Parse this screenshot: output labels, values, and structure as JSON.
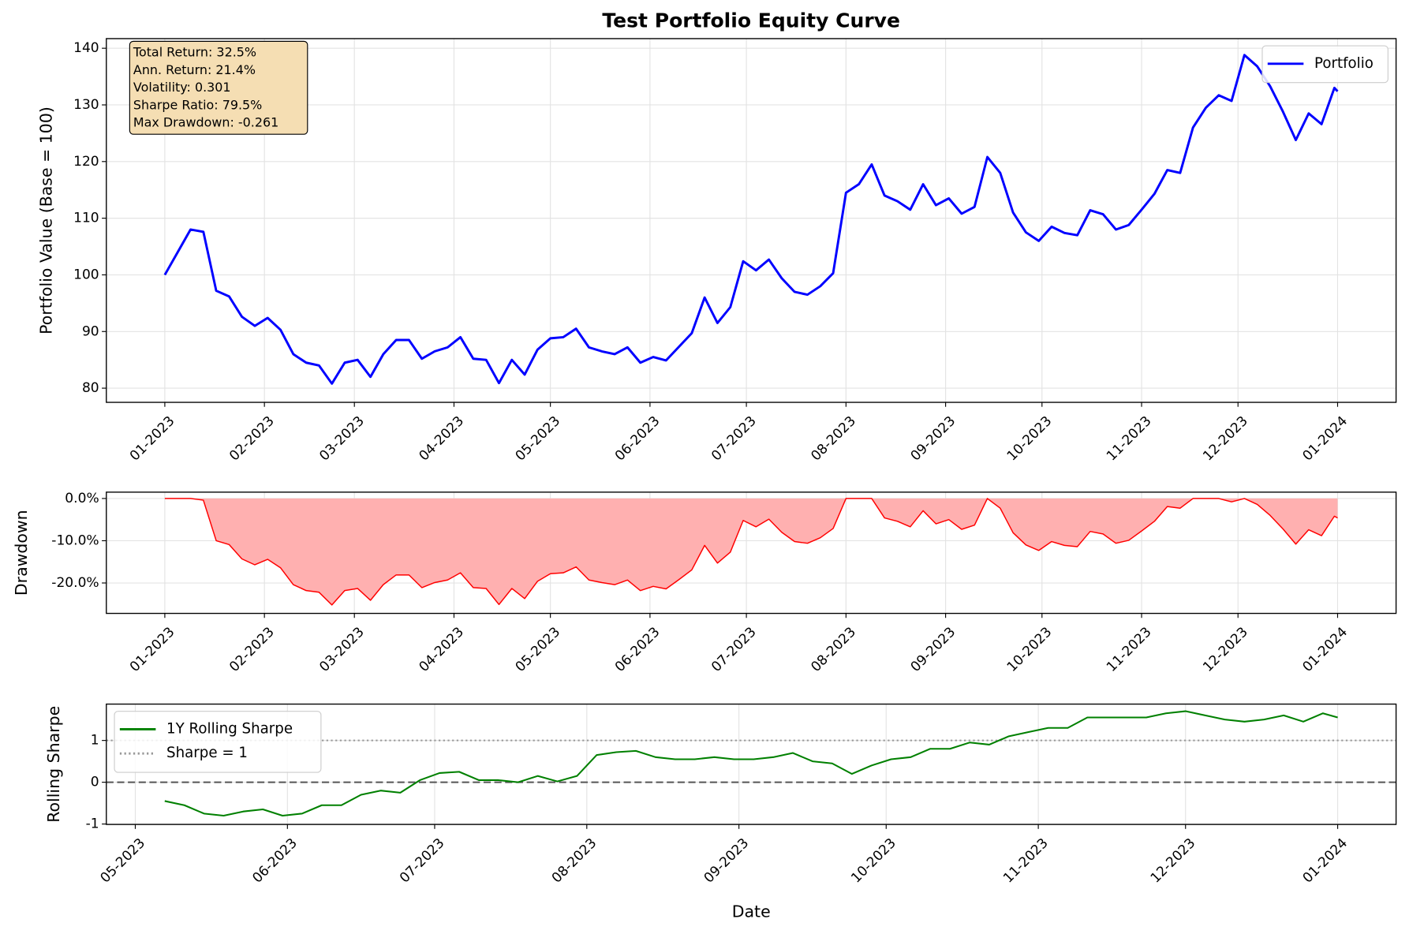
{
  "chart_data": [
    {
      "type": "line",
      "title": "Test Portfolio Equity Curve",
      "y_label": "Portfolio Value (Base = 100)",
      "x": [
        0,
        4,
        8,
        12,
        16,
        20,
        24,
        28,
        32,
        36,
        40,
        44,
        48,
        52,
        56,
        60,
        64,
        68,
        72,
        76,
        80,
        84,
        88,
        92,
        96,
        100,
        104,
        108,
        112,
        116,
        120,
        124,
        128,
        132,
        136,
        140,
        144,
        148,
        152,
        156,
        160,
        164,
        168,
        172,
        176,
        180,
        184,
        188,
        192,
        196,
        200,
        204,
        208,
        212,
        216,
        220,
        224,
        228,
        232,
        236,
        240,
        244,
        248,
        252,
        256,
        260,
        264,
        268,
        272,
        276,
        280,
        284,
        288,
        292,
        296,
        300,
        304,
        308,
        312,
        316,
        320,
        324,
        328,
        332,
        336,
        340,
        344,
        348,
        352,
        356,
        360,
        364,
        365
      ],
      "series": [
        {
          "name": "Portfolio",
          "color": "#0000ff",
          "values": [
            100,
            104,
            108,
            107.6,
            97.2,
            96.2,
            92.6,
            91,
            92.4,
            90.3,
            86,
            84.5,
            84,
            80.8,
            84.5,
            85,
            82,
            86,
            88.5,
            88.5,
            85.2,
            86.5,
            87.2,
            89,
            85.2,
            85,
            80.9,
            85,
            82.4,
            86.8,
            88.8,
            89,
            90.5,
            87.2,
            86.5,
            86,
            87.2,
            84.5,
            85.5,
            84.9,
            87.3,
            89.7,
            96,
            91.5,
            94.3,
            102.4,
            100.8,
            102.7,
            99.4,
            97,
            96.5,
            98,
            100.3,
            114.5,
            116,
            119.5,
            114,
            113,
            111.5,
            116,
            112.3,
            113.5,
            110.8,
            112,
            120.8,
            118,
            111,
            107.5,
            106,
            108.5,
            107.4,
            107,
            111.4,
            110.7,
            108,
            108.8,
            111.5,
            114.3,
            118.5,
            118,
            126,
            129.5,
            131.7,
            130.7,
            138.8,
            136.8,
            133.3,
            128.8,
            123.8,
            128.5,
            126.6,
            133,
            132.4
          ]
        }
      ],
      "xlim": [
        -18.2,
        383.2
      ],
      "xticks": [
        {
          "value": 0,
          "label": "01-2023"
        },
        {
          "value": 31,
          "label": "02-2023"
        },
        {
          "value": 59,
          "label": "03-2023"
        },
        {
          "value": 90,
          "label": "04-2023"
        },
        {
          "value": 120,
          "label": "05-2023"
        },
        {
          "value": 151,
          "label": "06-2023"
        },
        {
          "value": 181,
          "label": "07-2023"
        },
        {
          "value": 212,
          "label": "08-2023"
        },
        {
          "value": 243,
          "label": "09-2023"
        },
        {
          "value": 273,
          "label": "10-2023"
        },
        {
          "value": 304,
          "label": "11-2023"
        },
        {
          "value": 334,
          "label": "12-2023"
        },
        {
          "value": 365,
          "label": "01-2024"
        }
      ],
      "ylim": [
        77.5,
        141.7
      ],
      "yticks": [
        80,
        90,
        100,
        110,
        120,
        130,
        140
      ],
      "grid": true,
      "legend": "upper right",
      "annotations": [
        "Total Return: 32.5%",
        "Ann. Return: 21.4%",
        "Volatility: 0.301",
        "Sharpe Ratio: 79.5%",
        "Max Drawdown: -0.261"
      ]
    },
    {
      "type": "line",
      "y_label": "Drawdown",
      "fill": true,
      "fill_color": "#ffb0b0",
      "x": [
        0,
        4,
        8,
        12,
        16,
        20,
        24,
        28,
        32,
        36,
        40,
        44,
        48,
        52,
        56,
        60,
        64,
        68,
        72,
        76,
        80,
        84,
        88,
        92,
        96,
        100,
        104,
        108,
        112,
        116,
        120,
        124,
        128,
        132,
        136,
        140,
        144,
        148,
        152,
        156,
        160,
        164,
        168,
        172,
        176,
        180,
        184,
        188,
        192,
        196,
        200,
        204,
        208,
        212,
        216,
        220,
        224,
        228,
        232,
        236,
        240,
        244,
        248,
        252,
        256,
        260,
        264,
        268,
        272,
        276,
        280,
        284,
        288,
        292,
        296,
        300,
        304,
        308,
        312,
        316,
        320,
        324,
        328,
        332,
        336,
        340,
        344,
        348,
        352,
        356,
        360,
        364,
        365
      ],
      "series": [
        {
          "color": "#ff0000",
          "values": [
            0,
            0,
            0,
            -0.4,
            -10,
            -10.9,
            -14.3,
            -15.7,
            -14.4,
            -16.4,
            -20.4,
            -21.8,
            -22.2,
            -25.2,
            -21.8,
            -21.3,
            -24.1,
            -20.4,
            -18.1,
            -18.1,
            -21.1,
            -19.9,
            -19.3,
            -17.6,
            -21.1,
            -21.3,
            -25.1,
            -21.3,
            -23.7,
            -19.6,
            -17.8,
            -17.6,
            -16.2,
            -19.3,
            -19.9,
            -20.4,
            -19.3,
            -21.8,
            -20.8,
            -21.4,
            -19.2,
            -16.9,
            -11.1,
            -15.3,
            -12.7,
            -5.2,
            -6.7,
            -4.9,
            -8,
            -10.2,
            -10.6,
            -9.3,
            -7.1,
            0,
            0,
            0,
            -4.6,
            -5.4,
            -6.7,
            -2.9,
            -6,
            -5,
            -7.3,
            -6.3,
            0,
            -2.3,
            -8.1,
            -11,
            -12.3,
            -10.2,
            -11.1,
            -11.4,
            -7.8,
            -8.4,
            -10.6,
            -9.9,
            -7.7,
            -5.4,
            -1.9,
            -2.3,
            0,
            0,
            0,
            -0.8,
            0,
            -1.4,
            -4,
            -7.2,
            -10.8,
            -7.4,
            -8.8,
            -4.2,
            -4.6
          ]
        }
      ],
      "xlim": [
        -18.2,
        383.2
      ],
      "xticks": [
        {
          "value": 0,
          "label": "01-2023"
        },
        {
          "value": 31,
          "label": "02-2023"
        },
        {
          "value": 59,
          "label": "03-2023"
        },
        {
          "value": 90,
          "label": "04-2023"
        },
        {
          "value": 120,
          "label": "05-2023"
        },
        {
          "value": 151,
          "label": "06-2023"
        },
        {
          "value": 181,
          "label": "07-2023"
        },
        {
          "value": 212,
          "label": "08-2023"
        },
        {
          "value": 243,
          "label": "09-2023"
        },
        {
          "value": 273,
          "label": "10-2023"
        },
        {
          "value": 304,
          "label": "11-2023"
        },
        {
          "value": 334,
          "label": "12-2023"
        },
        {
          "value": 365,
          "label": "01-2024"
        }
      ],
      "ylim": [
        -27.2,
        1.5
      ],
      "yticks": [
        {
          "value": 0,
          "label": "0.0%"
        },
        {
          "value": -10,
          "label": "-10.0%"
        },
        {
          "value": -20,
          "label": "-20.0%"
        }
      ],
      "grid": true
    },
    {
      "type": "line",
      "y_label": "Rolling Sharpe",
      "x_label": "Date",
      "x": [
        126,
        130,
        134,
        138,
        142,
        146,
        150,
        154,
        158,
        162,
        166,
        170,
        174,
        178,
        182,
        186,
        190,
        194,
        198,
        202,
        206,
        210,
        214,
        218,
        222,
        226,
        230,
        234,
        238,
        242,
        246,
        250,
        254,
        258,
        262,
        266,
        270,
        274,
        278,
        282,
        286,
        290,
        294,
        298,
        302,
        306,
        310,
        314,
        318,
        322,
        326,
        330,
        334,
        338,
        342,
        346,
        350,
        354,
        358,
        362,
        365
      ],
      "series": [
        {
          "name": "1Y Rolling Sharpe",
          "color": "#008000",
          "values": [
            -0.45,
            -0.55,
            -0.75,
            -0.8,
            -0.7,
            -0.65,
            -0.8,
            -0.75,
            -0.55,
            -0.55,
            -0.3,
            -0.2,
            -0.25,
            0.05,
            0.22,
            0.25,
            0.05,
            0.05,
            0,
            0.15,
            0.02,
            0.15,
            0.65,
            0.72,
            0.75,
            0.6,
            0.55,
            0.55,
            0.6,
            0.55,
            0.55,
            0.6,
            0.7,
            0.5,
            0.45,
            0.2,
            0.4,
            0.55,
            0.6,
            0.8,
            0.8,
            0.95,
            0.9,
            1.1,
            1.2,
            1.3,
            1.3,
            1.55,
            1.55,
            1.55,
            1.55,
            1.65,
            1.7,
            1.6,
            1.5,
            1.45,
            1.5,
            1.6,
            1.45,
            1.65,
            1.55
          ]
        }
      ],
      "hlines": [
        {
          "value": 1,
          "name": "Sharpe = 1",
          "color": "#999999",
          "style": "dotted"
        },
        {
          "value": 0,
          "color": "#555555",
          "style": "dashed"
        }
      ],
      "xlim": [
        114.1,
        376.9
      ],
      "xticks": [
        {
          "value": 120,
          "label": "05-2023"
        },
        {
          "value": 151,
          "label": "06-2023"
        },
        {
          "value": 181,
          "label": "07-2023"
        },
        {
          "value": 212,
          "label": "08-2023"
        },
        {
          "value": 243,
          "label": "09-2023"
        },
        {
          "value": 273,
          "label": "10-2023"
        },
        {
          "value": 304,
          "label": "11-2023"
        },
        {
          "value": 334,
          "label": "12-2023"
        },
        {
          "value": 365,
          "label": "01-2024"
        }
      ],
      "ylim": [
        -1.01,
        1.87
      ],
      "yticks": [
        -1,
        0,
        1
      ],
      "grid": true,
      "legend": "upper left"
    }
  ]
}
